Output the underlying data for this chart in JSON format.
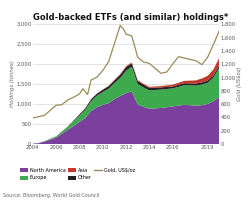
{
  "title": "Gold-backed ETFs (and similar) holdings*",
  "ylabel_left": "Holdings (tonnes)",
  "ylabel_right": "Gold (US$oz)",
  "source": "Source: Bloomberg, World Gold Council",
  "color_na": "#7B3F9E",
  "color_europe": "#3DAA4E",
  "color_asia": "#C0392B",
  "color_other": "#222222",
  "color_gold": "#9B8B5A",
  "ylim_left": [
    0,
    3000
  ],
  "ylim_right": [
    0,
    1800
  ],
  "background_color": "#FFFFFF"
}
